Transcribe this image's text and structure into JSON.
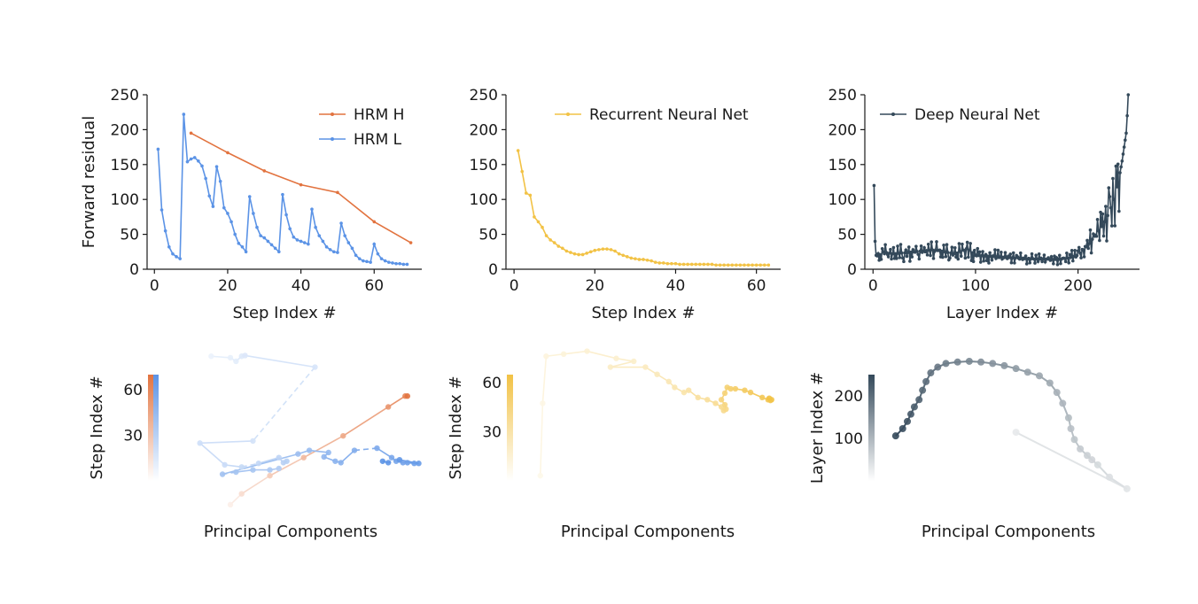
{
  "colors": {
    "hrm_h": "#e2733f",
    "hrm_l": "#5b93e6",
    "rnn": "#f2c245",
    "dnn": "#34495a",
    "axis": "#1a1a1a"
  },
  "chart_data": [
    {
      "id": "hrm-residual",
      "type": "line",
      "ylabel": "Forward residual",
      "xlabel": "Step Index #",
      "ylim": [
        0,
        250
      ],
      "xlim": [
        -2,
        73
      ],
      "xticks": [
        0,
        20,
        40,
        60
      ],
      "yticks": [
        0,
        50,
        100,
        150,
        200,
        250
      ],
      "legend_position": "top-right",
      "series": [
        {
          "name": "HRM H",
          "color_key": "hrm_h",
          "x": [
            10,
            20,
            30,
            40,
            50,
            60,
            70
          ],
          "y": [
            195,
            167,
            141,
            121,
            110,
            68,
            38
          ]
        },
        {
          "name": "HRM L",
          "color_key": "hrm_l",
          "x": [
            1,
            2,
            3,
            4,
            5,
            6,
            7,
            8,
            9,
            10,
            11,
            12,
            13,
            14,
            15,
            16,
            17,
            18,
            19,
            20,
            21,
            22,
            23,
            24,
            25,
            26,
            27,
            28,
            29,
            30,
            31,
            32,
            33,
            34,
            35,
            36,
            37,
            38,
            39,
            40,
            41,
            42,
            43,
            44,
            45,
            46,
            47,
            48,
            49,
            50,
            51,
            52,
            53,
            54,
            55,
            56,
            57,
            58,
            59,
            60,
            61,
            62,
            63,
            64,
            65,
            66,
            67,
            68,
            69
          ],
          "y": [
            172,
            85,
            55,
            32,
            22,
            18,
            15,
            222,
            154,
            158,
            160,
            155,
            148,
            130,
            105,
            90,
            147,
            126,
            88,
            80,
            68,
            50,
            37,
            32,
            25,
            104,
            80,
            60,
            48,
            45,
            40,
            35,
            30,
            25,
            107,
            78,
            58,
            46,
            42,
            40,
            38,
            36,
            86,
            60,
            48,
            40,
            32,
            28,
            25,
            24,
            66,
            48,
            38,
            30,
            20,
            15,
            12,
            11,
            10,
            36,
            22,
            15,
            12,
            10,
            9,
            8,
            8,
            7,
            7
          ]
        }
      ]
    },
    {
      "id": "rnn-residual",
      "type": "line",
      "xlabel": "Step Index #",
      "ylim": [
        0,
        250
      ],
      "xlim": [
        -2,
        66
      ],
      "xticks": [
        0,
        20,
        40,
        60
      ],
      "yticks": [
        0,
        50,
        100,
        150,
        200,
        250
      ],
      "legend_position": "top-right",
      "series": [
        {
          "name": "Recurrent Neural Net",
          "color_key": "rnn",
          "x": [
            1,
            2,
            3,
            4,
            5,
            6,
            7,
            8,
            9,
            10,
            11,
            12,
            13,
            14,
            15,
            16,
            17,
            18,
            19,
            20,
            21,
            22,
            23,
            24,
            25,
            26,
            27,
            28,
            29,
            30,
            31,
            32,
            33,
            34,
            35,
            36,
            37,
            38,
            39,
            40,
            41,
            42,
            43,
            44,
            45,
            46,
            47,
            48,
            49,
            50,
            51,
            52,
            53,
            54,
            55,
            56,
            57,
            58,
            59,
            60,
            61,
            62,
            63
          ],
          "y": [
            170,
            140,
            109,
            106,
            75,
            68,
            60,
            48,
            42,
            38,
            33,
            30,
            26,
            24,
            22,
            21,
            21,
            23,
            25,
            27,
            28,
            29,
            29,
            28,
            26,
            22,
            20,
            18,
            16,
            15,
            14,
            14,
            13,
            12,
            10,
            9,
            9,
            8,
            8,
            8,
            7,
            7,
            7,
            7,
            7,
            7,
            7,
            7,
            7,
            6,
            6,
            6,
            6,
            6,
            6,
            6,
            6,
            6,
            6,
            6,
            6,
            6,
            6
          ]
        }
      ]
    },
    {
      "id": "dnn-residual",
      "type": "line",
      "xlabel": "Layer Index #",
      "ylim": [
        0,
        250
      ],
      "xlim": [
        -8,
        260
      ],
      "xticks": [
        0,
        100,
        200
      ],
      "yticks": [
        0,
        50,
        100,
        150,
        200,
        250
      ],
      "legend_position": "top-left",
      "series": [
        {
          "name": "Deep Neural Net",
          "color_key": "dnn",
          "anchors_x": [
            1,
            2,
            3,
            5,
            10,
            20,
            40,
            60,
            80,
            92,
            100,
            120,
            150,
            180,
            190,
            200,
            205,
            210,
            215,
            220,
            225,
            230,
            235,
            240,
            243,
            245,
            247,
            248,
            249
          ],
          "anchors_y": [
            120,
            40,
            20,
            18,
            25,
            22,
            25,
            28,
            22,
            30,
            20,
            18,
            15,
            14,
            16,
            20,
            28,
            35,
            45,
            55,
            65,
            80,
            100,
            130,
            155,
            175,
            195,
            220,
            250
          ]
        }
      ]
    },
    {
      "id": "hrm-pca",
      "type": "scatter",
      "xlabel": "Principal Components",
      "colorbar": {
        "label": "Step Index #",
        "ticks": [
          30,
          60
        ],
        "range": [
          0,
          70
        ]
      },
      "series": [
        {
          "name": "HRM H",
          "color_key": "hrm_h",
          "points": [
            [
              -0.55,
              -1.0
            ],
            [
              -0.45,
              -0.85
            ],
            [
              -0.2,
              -0.6
            ],
            [
              0.1,
              -0.35
            ],
            [
              0.45,
              -0.05
            ],
            [
              0.85,
              0.35
            ],
            [
              1.0,
              0.5
            ],
            [
              1.02,
              0.5
            ]
          ]
        },
        {
          "name": "HRM L",
          "color_key": "hrm_l",
          "points": [
            [
              -0.72,
              1.05
            ],
            [
              -0.55,
              1.03
            ],
            [
              -0.5,
              0.98
            ],
            [
              -0.45,
              1.05
            ],
            [
              -0.42,
              1.06
            ],
            [
              0.2,
              0.9
            ],
            [
              -0.35,
              -0.12
            ],
            [
              -0.82,
              -0.15
            ],
            [
              -0.6,
              -0.45
            ],
            [
              -0.45,
              -0.48
            ],
            [
              -0.3,
              -0.43
            ],
            [
              -0.12,
              -0.35
            ],
            [
              -0.08,
              -0.42
            ],
            [
              -0.05,
              -0.4
            ],
            [
              -0.12,
              -0.5
            ],
            [
              -0.2,
              -0.52
            ],
            [
              -0.35,
              -0.52
            ],
            [
              -0.5,
              -0.55
            ],
            [
              -0.62,
              -0.58
            ],
            [
              0.05,
              -0.3
            ],
            [
              0.15,
              -0.25
            ],
            [
              0.32,
              -0.28
            ],
            [
              0.28,
              -0.34
            ],
            [
              0.38,
              -0.4
            ],
            [
              0.43,
              -0.42
            ],
            [
              0.55,
              -0.25
            ],
            [
              0.75,
              -0.22
            ],
            [
              0.88,
              -0.35
            ],
            [
              0.92,
              -0.4
            ],
            [
              0.98,
              -0.42
            ],
            [
              1.02,
              -0.42
            ],
            [
              1.08,
              -0.43
            ],
            [
              1.12,
              -0.43
            ],
            [
              0.95,
              -0.38
            ],
            [
              0.85,
              -0.42
            ],
            [
              0.8,
              -0.4
            ]
          ]
        }
      ]
    },
    {
      "id": "rnn-pca",
      "type": "scatter",
      "xlabel": "Principal Components",
      "colorbar": {
        "label": "Step Index #",
        "ticks": [
          30,
          60
        ],
        "range": [
          0,
          65
        ]
      },
      "series": [
        {
          "name": "Recurrent Neural Net",
          "color_key": "rnn",
          "points": [
            [
              -0.95,
              -0.6
            ],
            [
              -0.93,
              0.4
            ],
            [
              -0.9,
              1.05
            ],
            [
              -0.75,
              1.08
            ],
            [
              -0.55,
              1.12
            ],
            [
              -0.3,
              1.02
            ],
            [
              -0.15,
              0.98
            ],
            [
              -0.35,
              0.9
            ],
            [
              -0.05,
              0.9
            ],
            [
              0.05,
              0.8
            ],
            [
              0.15,
              0.7
            ],
            [
              0.2,
              0.62
            ],
            [
              0.28,
              0.55
            ],
            [
              0.32,
              0.58
            ],
            [
              0.4,
              0.48
            ],
            [
              0.48,
              0.45
            ],
            [
              0.55,
              0.4
            ],
            [
              0.6,
              0.35
            ],
            [
              0.62,
              0.3
            ],
            [
              0.64,
              0.32
            ],
            [
              0.63,
              0.38
            ],
            [
              0.6,
              0.45
            ],
            [
              0.63,
              0.54
            ],
            [
              0.65,
              0.62
            ],
            [
              0.68,
              0.6
            ],
            [
              0.72,
              0.6
            ],
            [
              0.8,
              0.58
            ],
            [
              0.85,
              0.55
            ],
            [
              0.95,
              0.48
            ],
            [
              1.0,
              0.45
            ],
            [
              1.02,
              0.44
            ],
            [
              1.03,
              0.45
            ],
            [
              1.01,
              0.47
            ]
          ]
        }
      ]
    },
    {
      "id": "dnn-pca",
      "type": "scatter",
      "xlabel": "Principal Components",
      "colorbar": {
        "label": "Layer Index #",
        "ticks": [
          100,
          200
        ],
        "range": [
          0,
          250
        ]
      },
      "series": [
        {
          "name": "Deep Neural Net",
          "color_key": "dnn",
          "points": [
            [
              0.05,
              0.0
            ],
            [
              1.0,
              -0.78
            ],
            [
              0.85,
              -0.62
            ],
            [
              0.75,
              -0.45
            ],
            [
              0.7,
              -0.38
            ],
            [
              0.66,
              -0.32
            ],
            [
              0.6,
              -0.23
            ],
            [
              0.55,
              -0.1
            ],
            [
              0.52,
              0.05
            ],
            [
              0.5,
              0.2
            ],
            [
              0.45,
              0.4
            ],
            [
              0.4,
              0.55
            ],
            [
              0.34,
              0.68
            ],
            [
              0.25,
              0.78
            ],
            [
              0.15,
              0.83
            ],
            [
              0.05,
              0.88
            ],
            [
              -0.05,
              0.92
            ],
            [
              -0.15,
              0.95
            ],
            [
              -0.25,
              0.97
            ],
            [
              -0.35,
              0.98
            ],
            [
              -0.45,
              0.97
            ],
            [
              -0.55,
              0.95
            ],
            [
              -0.62,
              0.9
            ],
            [
              -0.68,
              0.82
            ],
            [
              -0.72,
              0.7
            ],
            [
              -0.75,
              0.58
            ],
            [
              -0.78,
              0.45
            ],
            [
              -0.82,
              0.35
            ],
            [
              -0.85,
              0.25
            ],
            [
              -0.88,
              0.15
            ],
            [
              -0.92,
              0.05
            ],
            [
              -0.98,
              -0.05
            ]
          ]
        }
      ]
    }
  ]
}
